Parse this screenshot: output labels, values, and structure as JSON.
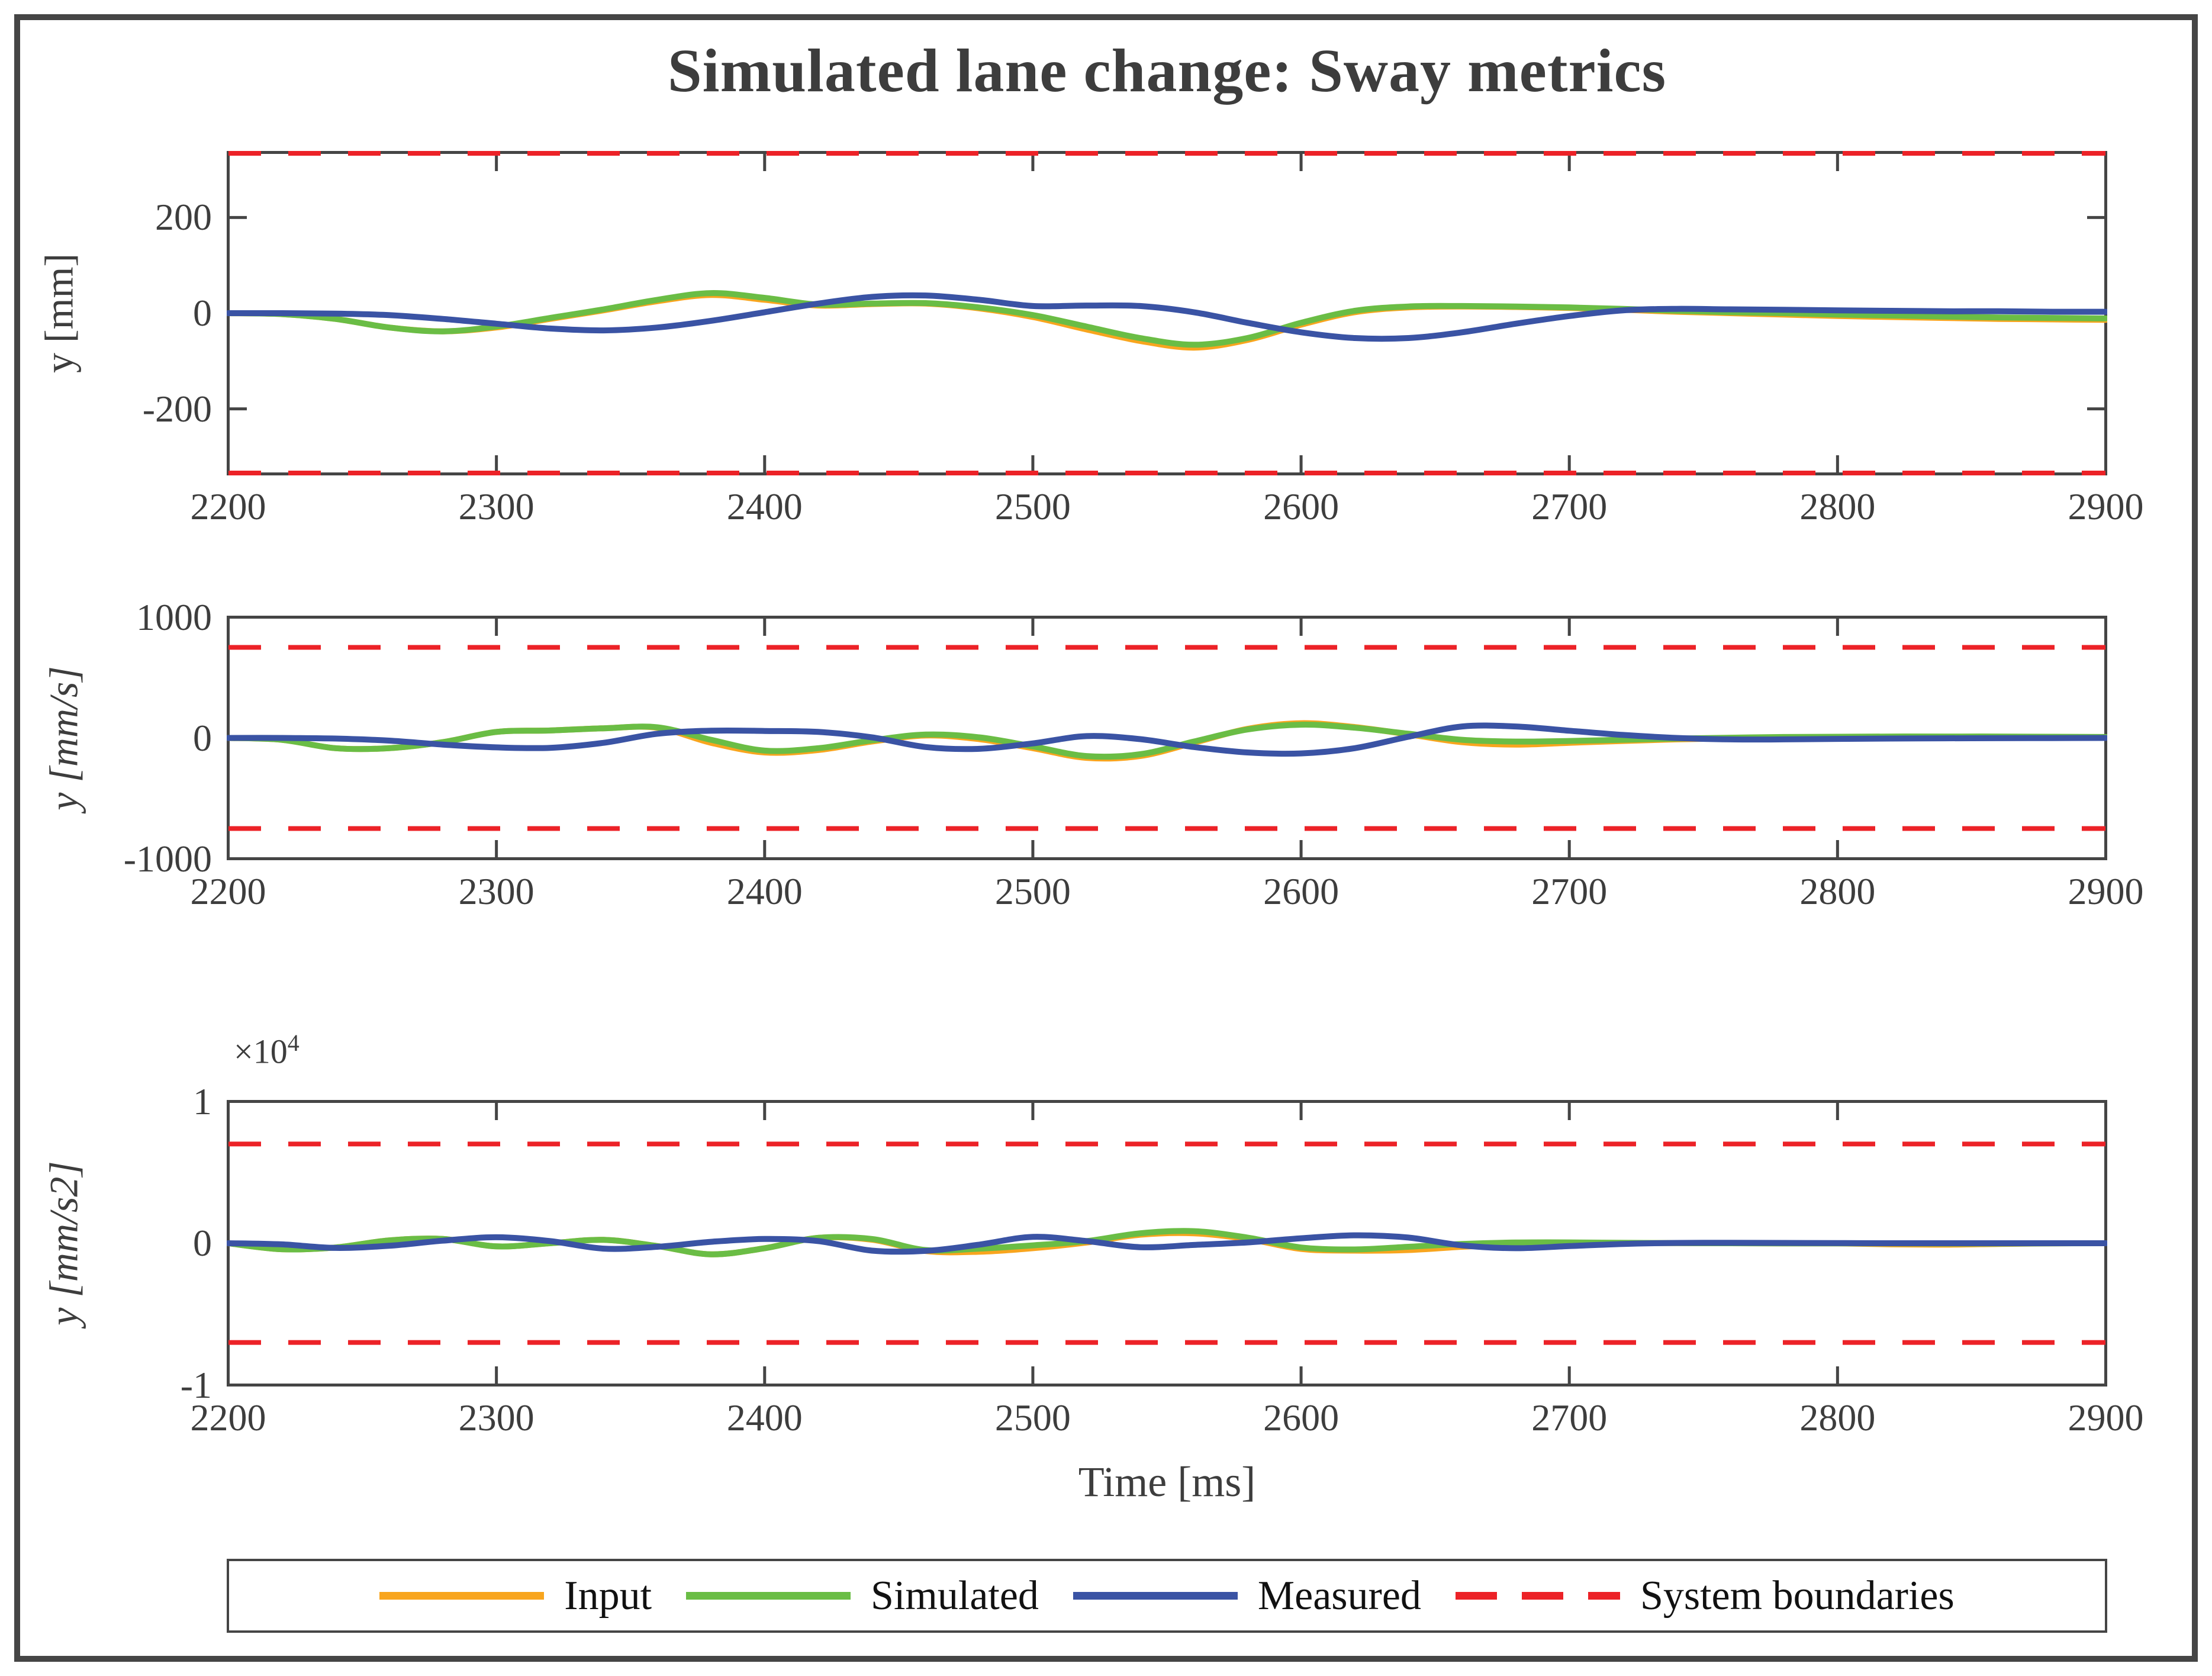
{
  "title": "Simulated lane change: Sway metrics",
  "xlabel": "Time [ms]",
  "colors": {
    "input": "#F8A51E",
    "simulated": "#6ABD45",
    "measured": "#3A53A4",
    "boundary": "#EC2227",
    "axis": "#454545",
    "text": "#3d3d3d"
  },
  "legend": {
    "items": [
      {
        "label": "Input",
        "color": "input",
        "style": "solid"
      },
      {
        "label": "Simulated",
        "color": "simulated",
        "style": "solid"
      },
      {
        "label": "Measured",
        "color": "measured",
        "style": "dashed-none"
      },
      {
        "label": "System boundaries",
        "color": "boundary",
        "style": "dashed"
      }
    ]
  },
  "chart_data": [
    {
      "type": "line",
      "ylabel": "y [mm]",
      "ylabel_style": "upright",
      "xlim": [
        2200,
        2900
      ],
      "ylim": [
        -336,
        336
      ],
      "boundary": 336,
      "grid": false,
      "xticks": {
        "values": [
          2200,
          2300,
          2400,
          2500,
          2600,
          2700,
          2800,
          2900
        ],
        "labels": [
          "2200",
          "2300",
          "2400",
          "2500",
          "2600",
          "2700",
          "2800",
          "2900"
        ]
      },
      "yticks": {
        "values": [
          200,
          0,
          -200
        ],
        "labels": [
          "200",
          "0",
          "-200"
        ]
      },
      "x": [
        2200,
        2220,
        2240,
        2260,
        2280,
        2300,
        2320,
        2340,
        2360,
        2380,
        2400,
        2420,
        2440,
        2460,
        2480,
        2500,
        2520,
        2540,
        2560,
        2580,
        2600,
        2620,
        2640,
        2660,
        2680,
        2700,
        2720,
        2740,
        2760,
        2780,
        2800,
        2820,
        2840,
        2860,
        2880,
        2900
      ],
      "series": [
        {
          "name": "Input",
          "color": "input",
          "values": [
            0,
            -2,
            -12,
            -30,
            -38,
            -30,
            -12,
            6,
            25,
            38,
            28,
            16,
            19,
            20,
            10,
            -8,
            -34,
            -58,
            -72,
            -56,
            -24,
            2,
            12,
            14,
            13,
            11,
            7,
            3,
            0,
            -3,
            -6,
            -8,
            -10,
            -12,
            -13,
            -14
          ]
        },
        {
          "name": "Simulated",
          "color": "simulated",
          "values": [
            0,
            -2,
            -12,
            -30,
            -38,
            -28,
            -10,
            8,
            28,
            42,
            32,
            18,
            20,
            21,
            12,
            -4,
            -28,
            -52,
            -66,
            -52,
            -20,
            5,
            14,
            15,
            14,
            12,
            9,
            5,
            2,
            0,
            -3,
            -5,
            -7,
            -9,
            -10,
            -11
          ]
        },
        {
          "name": "Measured",
          "color": "measured",
          "values": [
            0,
            0,
            -1,
            -4,
            -12,
            -22,
            -32,
            -36,
            -30,
            -16,
            2,
            20,
            34,
            37,
            28,
            15,
            16,
            15,
            2,
            -20,
            -40,
            -52,
            -52,
            -40,
            -22,
            -6,
            6,
            9,
            8,
            7,
            6,
            5,
            4,
            4,
            3,
            3
          ]
        }
      ]
    },
    {
      "type": "line",
      "ylabel": "y [mm/s]",
      "ylabel_style": "italic",
      "xlim": [
        2200,
        2900
      ],
      "ylim": [
        -1000,
        1000
      ],
      "boundary": 750,
      "grid": false,
      "xticks": {
        "values": [
          2200,
          2300,
          2400,
          2500,
          2600,
          2700,
          2800,
          2900
        ],
        "labels": [
          "2200",
          "2300",
          "2400",
          "2500",
          "2600",
          "2700",
          "2800",
          "2900"
        ]
      },
      "yticks": {
        "values": [
          1000,
          0,
          -1000
        ],
        "labels": [
          "1000",
          "0",
          "-1000"
        ]
      },
      "x": [
        2200,
        2220,
        2240,
        2260,
        2280,
        2300,
        2320,
        2340,
        2360,
        2380,
        2400,
        2420,
        2440,
        2460,
        2480,
        2500,
        2520,
        2540,
        2560,
        2580,
        2600,
        2620,
        2640,
        2660,
        2680,
        2700,
        2720,
        2740,
        2760,
        2780,
        2800,
        2820,
        2840,
        2860,
        2880,
        2900
      ],
      "series": [
        {
          "name": "Input",
          "color": "input",
          "values": [
            0,
            -15,
            -85,
            -85,
            -35,
            50,
            62,
            80,
            85,
            -40,
            -120,
            -100,
            -30,
            20,
            -10,
            -85,
            -165,
            -150,
            -40,
            75,
            122,
            90,
            30,
            -35,
            -55,
            -40,
            -25,
            -12,
            -3,
            2,
            4,
            5,
            5,
            5,
            4,
            3
          ]
        },
        {
          "name": "Simulated",
          "color": "simulated",
          "values": [
            0,
            -15,
            -85,
            -85,
            -35,
            50,
            62,
            80,
            88,
            -15,
            -105,
            -85,
            -20,
            28,
            5,
            -70,
            -150,
            -135,
            -30,
            70,
            110,
            85,
            35,
            -15,
            -30,
            -25,
            -15,
            -5,
            2,
            8,
            10,
            12,
            12,
            12,
            10,
            8
          ]
        },
        {
          "name": "Measured",
          "color": "measured",
          "values": [
            0,
            0,
            -5,
            -22,
            -55,
            -78,
            -82,
            -40,
            35,
            60,
            58,
            50,
            5,
            -75,
            -90,
            -45,
            15,
            -10,
            -75,
            -120,
            -128,
            -85,
            10,
            95,
            95,
            60,
            25,
            0,
            -12,
            -12,
            -8,
            -5,
            -3,
            -2,
            -1,
            0
          ]
        }
      ]
    },
    {
      "type": "line",
      "ylabel": "y [mm/s2]",
      "ylabel_style": "italic",
      "exponent": "×10",
      "exponent_power": "4",
      "xlim": [
        2200,
        2900
      ],
      "ylim": [
        -10000,
        10000
      ],
      "boundary": 7000,
      "grid": false,
      "xticks": {
        "values": [
          2200,
          2300,
          2400,
          2500,
          2600,
          2700,
          2800,
          2900
        ],
        "labels": [
          "2200",
          "2300",
          "2400",
          "2500",
          "2600",
          "2700",
          "2800",
          "2900"
        ]
      },
      "yticks": {
        "values": [
          10000,
          0,
          -10000
        ],
        "labels": [
          "1",
          "0",
          "-1"
        ]
      },
      "x": [
        2200,
        2220,
        2240,
        2260,
        2280,
        2300,
        2320,
        2340,
        2360,
        2380,
        2400,
        2420,
        2440,
        2460,
        2480,
        2500,
        2520,
        2540,
        2560,
        2580,
        2600,
        2620,
        2640,
        2660,
        2680,
        2700,
        2720,
        2740,
        2760,
        2780,
        2800,
        2820,
        2840,
        2860,
        2880,
        2900
      ],
      "series": [
        {
          "name": "Input",
          "color": "input",
          "values": [
            0,
            -420,
            -300,
            200,
            300,
            -220,
            0,
            240,
            -200,
            -780,
            -350,
            380,
            250,
            -550,
            -600,
            -350,
            50,
            600,
            700,
            300,
            -400,
            -520,
            -480,
            -250,
            -80,
            0,
            10,
            10,
            0,
            -10,
            -10,
            -80,
            -100,
            -50,
            -10,
            0
          ]
        },
        {
          "name": "Simulated",
          "color": "simulated",
          "values": [
            0,
            -420,
            -300,
            200,
            300,
            -220,
            0,
            240,
            -200,
            -780,
            -350,
            380,
            300,
            -480,
            -380,
            -150,
            150,
            700,
            850,
            400,
            -300,
            -440,
            -250,
            -50,
            50,
            60,
            30,
            10,
            0,
            -10,
            -10,
            -10,
            -20,
            -20,
            -10,
            0
          ]
        },
        {
          "name": "Measured",
          "color": "measured",
          "values": [
            0,
            -80,
            -330,
            -180,
            180,
            420,
            150,
            -380,
            -250,
            100,
            300,
            150,
            -520,
            -540,
            -100,
            450,
            150,
            -280,
            -120,
            60,
            350,
            560,
            400,
            -150,
            -350,
            -200,
            -50,
            20,
            30,
            20,
            10,
            0,
            0,
            0,
            0,
            0
          ]
        }
      ]
    }
  ]
}
